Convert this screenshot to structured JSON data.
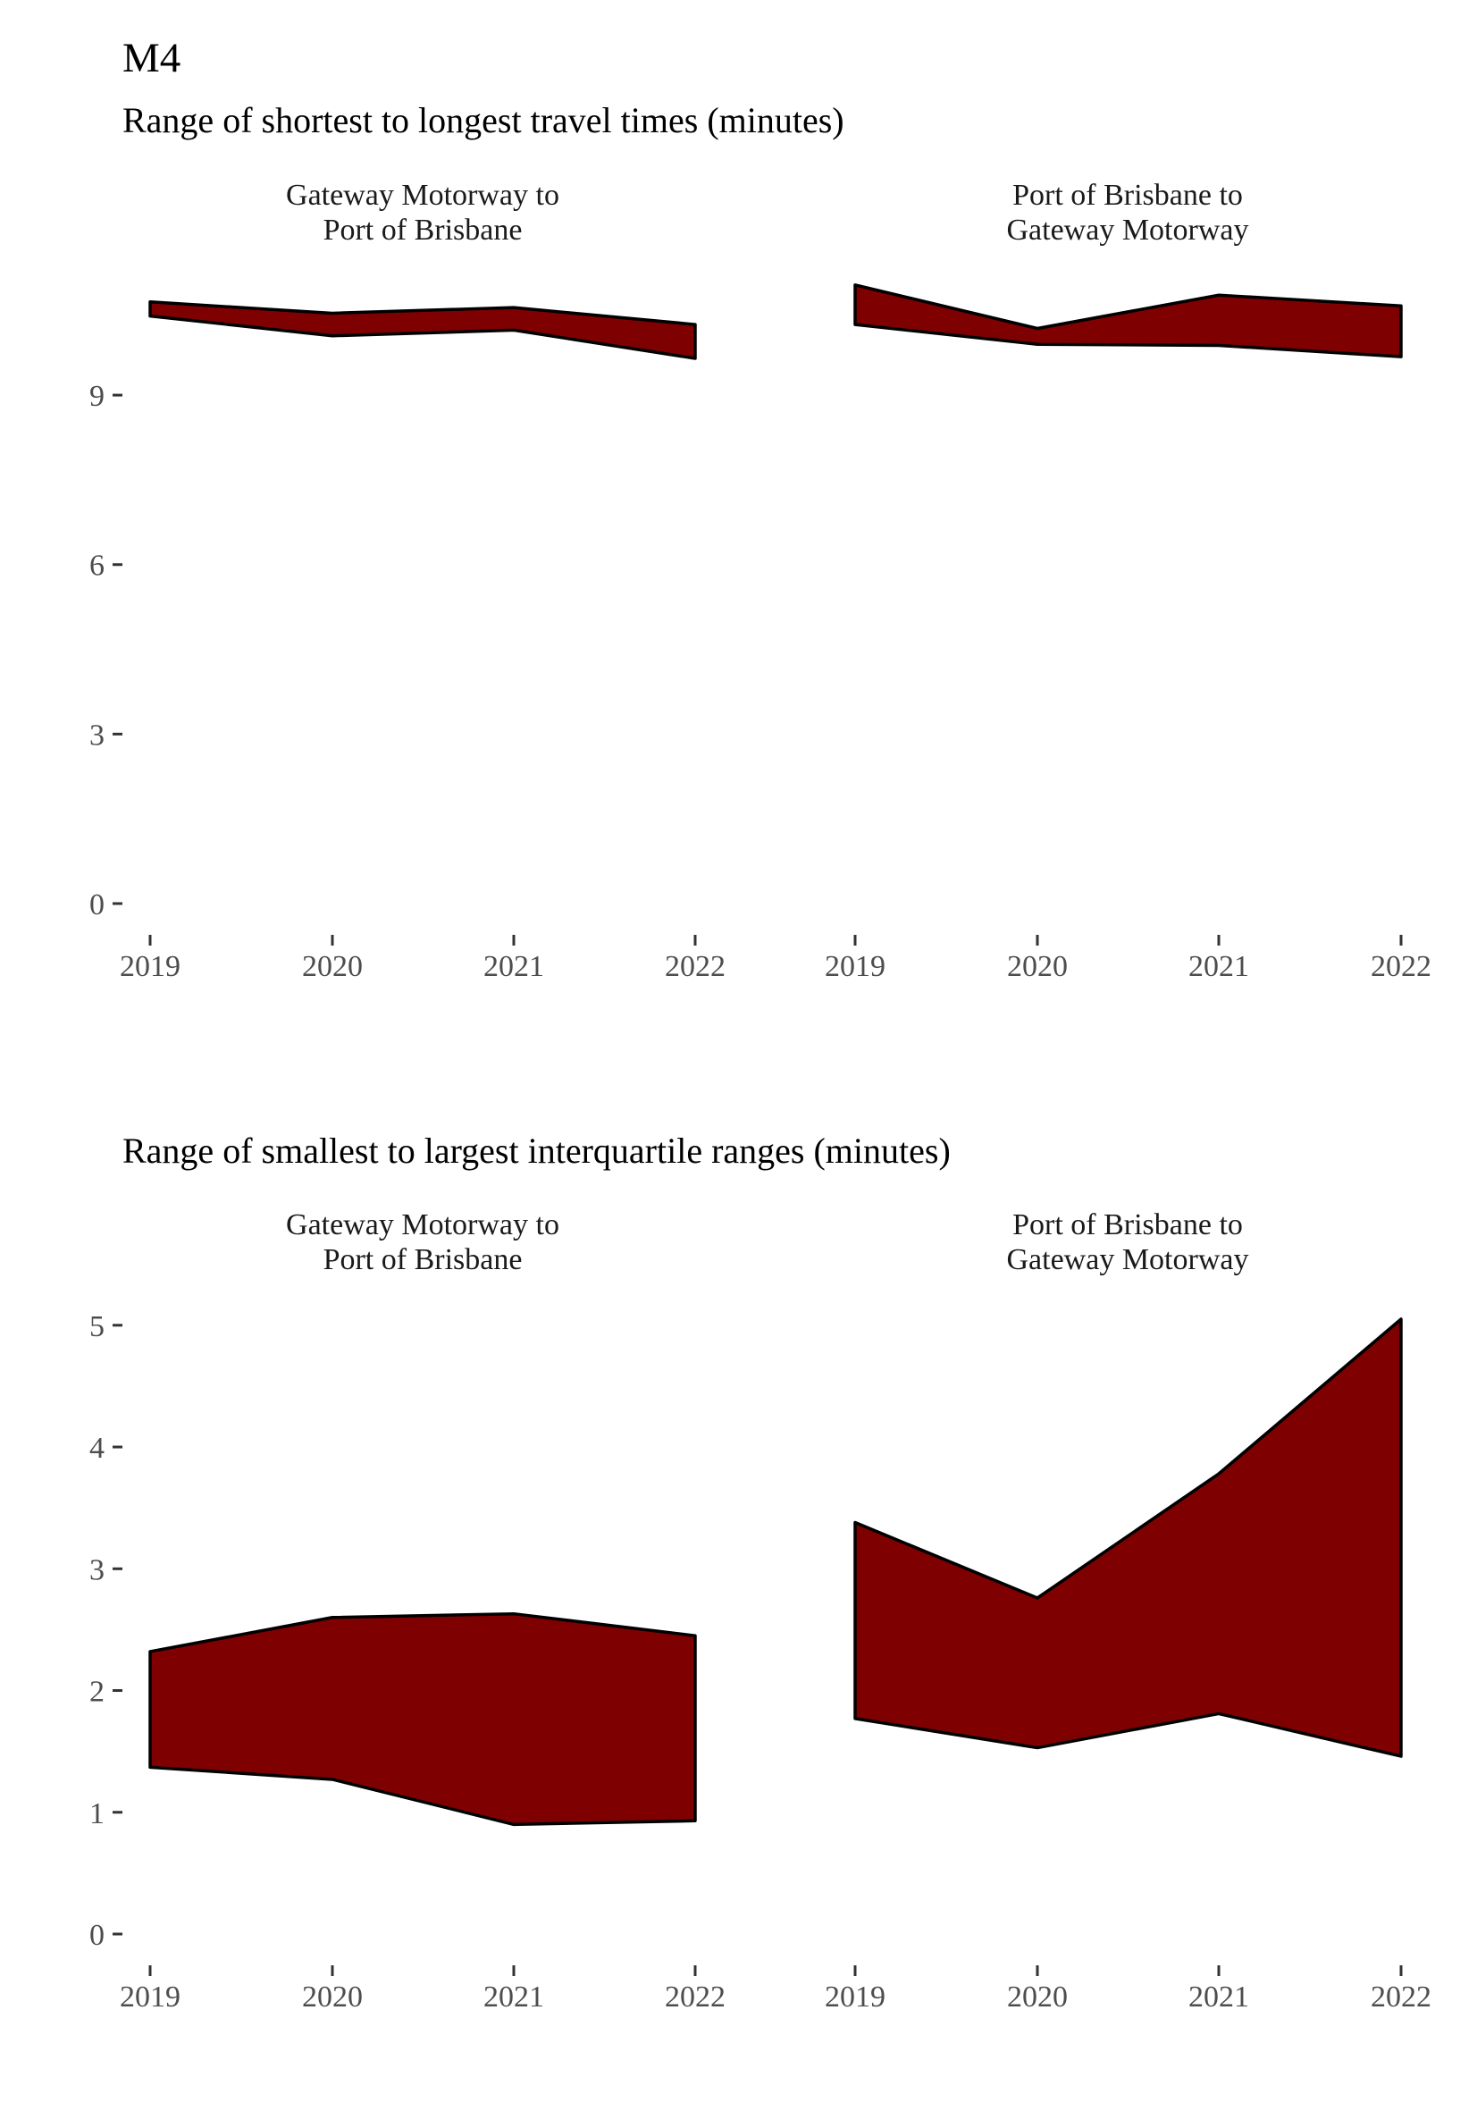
{
  "title": "M4",
  "colors": {
    "band_fill": "#7f0000",
    "band_outline": "#000000",
    "axis_text": "#4d4d4d"
  },
  "chart_data": [
    {
      "type": "area",
      "subtitle": "Range of shortest to longest travel times (minutes)",
      "ylim": [
        0,
        10.9
      ],
      "yticks": [
        0,
        3,
        6,
        9
      ],
      "grid": false,
      "panels": [
        {
          "label_lines": [
            "Gateway Motorway to",
            "Port of Brisbane"
          ],
          "x": [
            "2019",
            "2020",
            "2021",
            "2022"
          ],
          "ymin": [
            10.4,
            10.05,
            10.15,
            9.65
          ],
          "ymax": [
            10.65,
            10.45,
            10.55,
            10.25
          ]
        },
        {
          "label_lines": [
            "Port of Brisbane to",
            "Gateway Motorway"
          ],
          "x": [
            "2019",
            "2020",
            "2021",
            "2022"
          ],
          "ymin": [
            10.25,
            9.9,
            9.88,
            9.68
          ],
          "ymax": [
            10.95,
            10.18,
            10.77,
            10.58
          ]
        }
      ]
    },
    {
      "type": "area",
      "subtitle": "Range of smallest to largest interquartile ranges (minutes)",
      "ylim": [
        0,
        5.05
      ],
      "yticks": [
        0,
        1,
        2,
        3,
        4,
        5
      ],
      "grid": false,
      "panels": [
        {
          "label_lines": [
            "Gateway Motorway to",
            "Port of Brisbane"
          ],
          "x": [
            "2019",
            "2020",
            "2021",
            "2022"
          ],
          "ymin": [
            1.37,
            1.27,
            0.9,
            0.93
          ],
          "ymax": [
            2.32,
            2.6,
            2.63,
            2.45
          ]
        },
        {
          "label_lines": [
            "Port of Brisbane to",
            "Gateway Motorway"
          ],
          "x": [
            "2019",
            "2020",
            "2021",
            "2022"
          ],
          "ymin": [
            1.77,
            1.53,
            1.81,
            1.46
          ],
          "ymax": [
            3.38,
            2.76,
            3.78,
            5.05
          ]
        }
      ]
    }
  ]
}
